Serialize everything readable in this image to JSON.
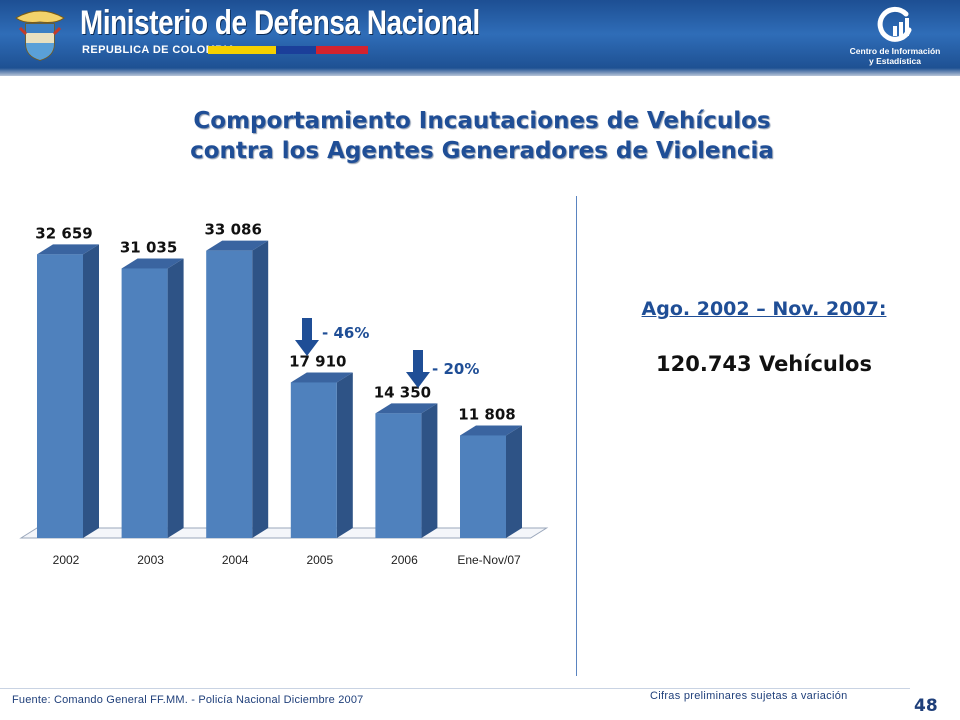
{
  "header": {
    "ministry": "Ministerio de Defensa Nacional",
    "country": "REPUBLICA DE COLOMBIA",
    "center_line1": "Centro de Información",
    "center_line2": "y Estadística"
  },
  "slide": {
    "title_line1": "Comportamiento Incautaciones de Vehículos",
    "title_line2": "contra los Agentes Generadores de Violencia",
    "period": "Ago. 2002 – Nov. 2007:",
    "total": "120.743 Vehículos",
    "source": "Fuente:  Comando General FF.MM. - Policía Nacional  Diciembre 2007",
    "prelim": "Cifras preliminares sujetas a variación",
    "page": "48"
  },
  "colors": {
    "bar_front": "#4f81bd",
    "bar_side": "#2e5386",
    "bar_top": "#3a64a0",
    "arrow": "#1f4e96",
    "change_label": "#1f4e96"
  },
  "chart_data": {
    "type": "bar",
    "categories": [
      "2002",
      "2003",
      "2004",
      "2005",
      "2006",
      "Ene-Nov/07"
    ],
    "values": [
      32659,
      31035,
      33086,
      17910,
      14350,
      11808
    ],
    "value_labels": [
      "32 659",
      "31 035",
      "33 086",
      "17 910",
      "14 350",
      "11 808"
    ],
    "ylim": [
      0,
      35000
    ],
    "grid": false,
    "annotations": [
      {
        "text": "- 46%",
        "between": [
          "2004",
          "2005"
        ]
      },
      {
        "text": "- 20%",
        "between": [
          "2005",
          "2006"
        ]
      }
    ]
  }
}
